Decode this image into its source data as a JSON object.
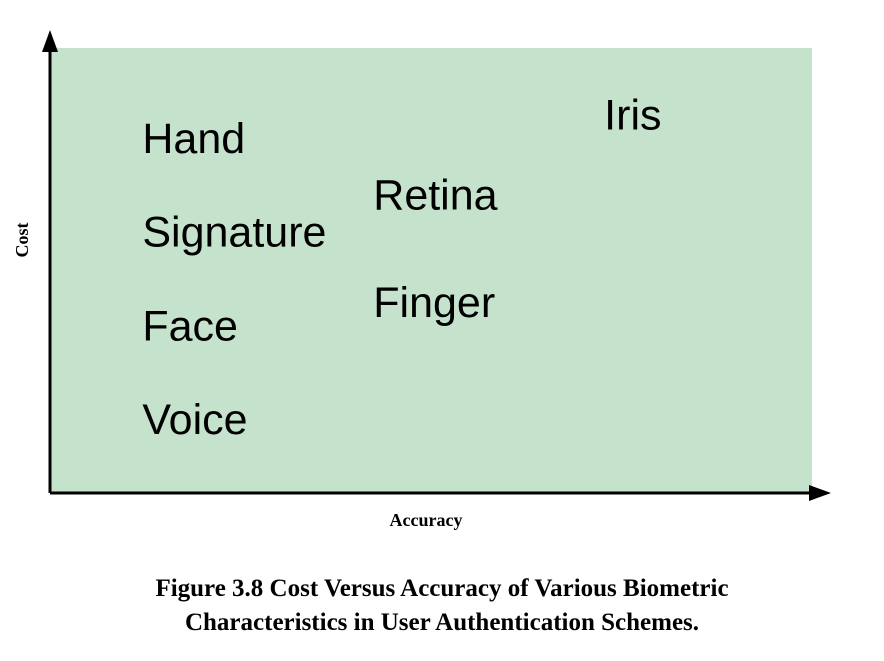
{
  "chart_data": {
    "type": "scatter",
    "xlabel": "Accuracy",
    "ylabel": "Cost",
    "grid": false,
    "background_color": "#c5e2cd",
    "axis_color": "#000000",
    "points": [
      {
        "label": "Hand",
        "x": 1,
        "y": 7.5
      },
      {
        "label": "Signature",
        "x": 1,
        "y": 5.5
      },
      {
        "label": "Face",
        "x": 1,
        "y": 3.5
      },
      {
        "label": "Voice",
        "x": 1,
        "y": 1.5
      },
      {
        "label": "Retina",
        "x": 2,
        "y": 6.3
      },
      {
        "label": "Finger",
        "x": 2,
        "y": 4.0
      },
      {
        "label": "Iris",
        "x": 3,
        "y": 8.0
      }
    ],
    "xlim": [
      0.6,
      3.9
    ],
    "ylim": [
      0,
      9.5
    ]
  },
  "caption": {
    "line1": "Figure 3.8  Cost Versus Accuracy of Various Biometric",
    "line2": "Characteristics in User Authentication Schemes."
  }
}
